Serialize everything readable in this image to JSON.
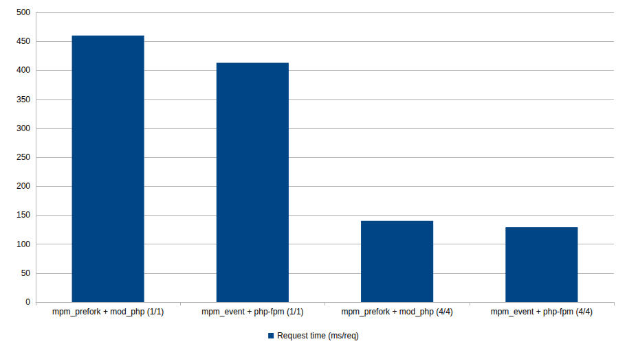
{
  "chart_data": {
    "type": "bar",
    "categories": [
      "mpm_prefork + mod_php (1/1)",
      "mpm_event + php-fpm (1/1)",
      "mpm_prefork + mod_php (4/4)",
      "mpm_event + php-fpm (4/4)"
    ],
    "series": [
      {
        "name": "Request time (ms/req)",
        "color": "#004586",
        "values": [
          460,
          413,
          140,
          129
        ]
      }
    ],
    "ylim": [
      0,
      500
    ],
    "yticks": [
      0,
      50,
      100,
      150,
      200,
      250,
      300,
      350,
      400,
      450,
      500
    ],
    "grid": true,
    "legend": "bottom"
  }
}
